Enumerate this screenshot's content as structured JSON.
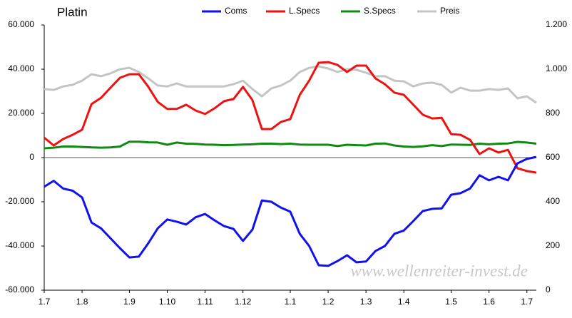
{
  "chart_data": {
    "type": "line",
    "title": "Platin",
    "annotation": "www.wellenreiter-invest.de",
    "categories": [
      "1.7",
      null,
      null,
      null,
      "1.8",
      null,
      null,
      null,
      null,
      "1.9",
      null,
      null,
      null,
      "1.10",
      null,
      null,
      null,
      "1.11",
      null,
      null,
      null,
      "1.12",
      null,
      null,
      null,
      null,
      "1.1",
      null,
      null,
      null,
      "1.2",
      null,
      null,
      null,
      "1.3",
      null,
      null,
      null,
      "1.4",
      null,
      null,
      null,
      null,
      "1.5",
      null,
      null,
      null,
      "1.6",
      null,
      null,
      null,
      "1.7",
      null
    ],
    "series": [
      {
        "name": "Coms",
        "color": "#1010f0",
        "values": [
          -13200,
          -10500,
          -14000,
          -15000,
          -18000,
          -29400,
          -32000,
          -36500,
          -41000,
          -45200,
          -44800,
          -38700,
          -32000,
          -28000,
          -29000,
          -30300,
          -27000,
          -25500,
          -28400,
          -31000,
          -32300,
          -37700,
          -32600,
          -19400,
          -20000,
          -22600,
          -24500,
          -34500,
          -40000,
          -48700,
          -49000,
          -46800,
          -44200,
          -47400,
          -47000,
          -42300,
          -40000,
          -34500,
          -33000,
          -28700,
          -24200,
          -23200,
          -23000,
          -16800,
          -16100,
          -14000,
          -8000,
          -10300,
          -8700,
          -10300,
          -2600,
          -600,
          300
        ]
      },
      {
        "name": "L.Specs",
        "color": "#ee1111",
        "values": [
          9000,
          5500,
          8400,
          10300,
          12600,
          24200,
          27000,
          31600,
          36100,
          37700,
          37700,
          32000,
          25200,
          22000,
          22000,
          23900,
          21300,
          19700,
          22300,
          25500,
          26500,
          32000,
          26000,
          12900,
          12900,
          16100,
          17400,
          28400,
          34800,
          42900,
          43200,
          41900,
          38700,
          41600,
          41600,
          35800,
          33200,
          29400,
          28400,
          23900,
          19400,
          17700,
          18000,
          10600,
          10300,
          8000,
          1600,
          4200,
          2300,
          3500,
          -4800,
          -6100,
          -6800
        ]
      },
      {
        "name": "S.Specs",
        "color": "#108a10",
        "values": [
          4200,
          4500,
          5000,
          5000,
          4800,
          4600,
          4500,
          4600,
          5000,
          7200,
          7200,
          6900,
          6800,
          5800,
          6800,
          6300,
          6200,
          5900,
          5800,
          5600,
          5700,
          5900,
          6000,
          6300,
          6300,
          6100,
          6300,
          5900,
          5800,
          5800,
          5800,
          5200,
          5800,
          5600,
          5500,
          6300,
          6400,
          5500,
          5000,
          4800,
          5100,
          5600,
          5200,
          5900,
          5800,
          5700,
          6300,
          6000,
          6300,
          6400,
          7100,
          6800,
          6300
        ]
      },
      {
        "name": "Preis",
        "color": "#c4c4c4",
        "axis": "y2",
        "values": [
          910,
          906,
          922,
          929,
          948,
          977,
          968,
          981,
          1000,
          1006,
          987,
          958,
          926,
          922,
          935,
          922,
          922,
          922,
          922,
          922,
          932,
          948,
          910,
          877,
          913,
          926,
          948,
          987,
          1006,
          1013,
          1003,
          987,
          1000,
          997,
          984,
          968,
          968,
          948,
          945,
          922,
          935,
          939,
          929,
          894,
          916,
          903,
          903,
          910,
          906,
          913,
          868,
          877,
          848
        ]
      }
    ],
    "ylim": [
      -60000,
      60000
    ],
    "yticks": [
      {
        "value": -60000,
        "label": "-60.000"
      },
      {
        "value": -40000,
        "label": "-40.000"
      },
      {
        "value": -20000,
        "label": "-20.000"
      },
      0,
      {
        "value": 20000,
        "label": "20.000"
      },
      {
        "value": 40000,
        "label": "40.000"
      },
      {
        "value": 60000,
        "label": "60.000"
      }
    ],
    "y2lim": [
      0,
      1200
    ],
    "y2ticks": [
      0,
      200,
      400,
      600,
      800,
      {
        "value": 1000,
        "label": "1.000"
      },
      {
        "value": 1200,
        "label": "1.200"
      }
    ]
  }
}
